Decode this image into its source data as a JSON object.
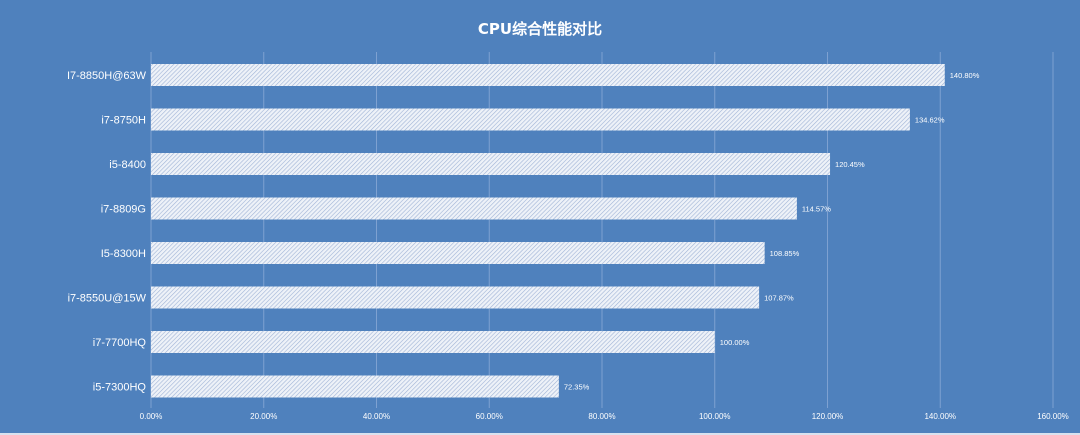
{
  "chart_data": {
    "type": "bar",
    "orientation": "horizontal",
    "title": "CPU综合性能对比",
    "categories": [
      "I7-8850H@63W",
      "i7-8750H",
      "i5-8400",
      "i7-8809G",
      "I5-8300H",
      "i7-8550U@15W",
      "i7-7700HQ",
      "i5-7300HQ"
    ],
    "values": [
      140.8,
      134.62,
      120.45,
      114.57,
      108.85,
      107.87,
      100.0,
      72.35
    ],
    "value_labels": [
      "140.80%",
      "134.62%",
      "120.45%",
      "114.57%",
      "108.85%",
      "107.87%",
      "100.00%",
      "72.35%"
    ],
    "xlim": [
      0,
      160
    ],
    "xticks": [
      0,
      20,
      40,
      60,
      80,
      100,
      120,
      140,
      160
    ],
    "xtick_labels": [
      "0.00%",
      "20.00%",
      "40.00%",
      "60.00%",
      "80.00%",
      "100.00%",
      "120.00%",
      "140.00%",
      "160.00%"
    ],
    "grid": "vertical",
    "legend": "none",
    "colors": {
      "background": "#4f81bd",
      "bar_fill": "#eef2f8",
      "bar_hatch": "#9fb3d6",
      "grid": "#7ea1d1",
      "text": "#ffffff"
    }
  }
}
